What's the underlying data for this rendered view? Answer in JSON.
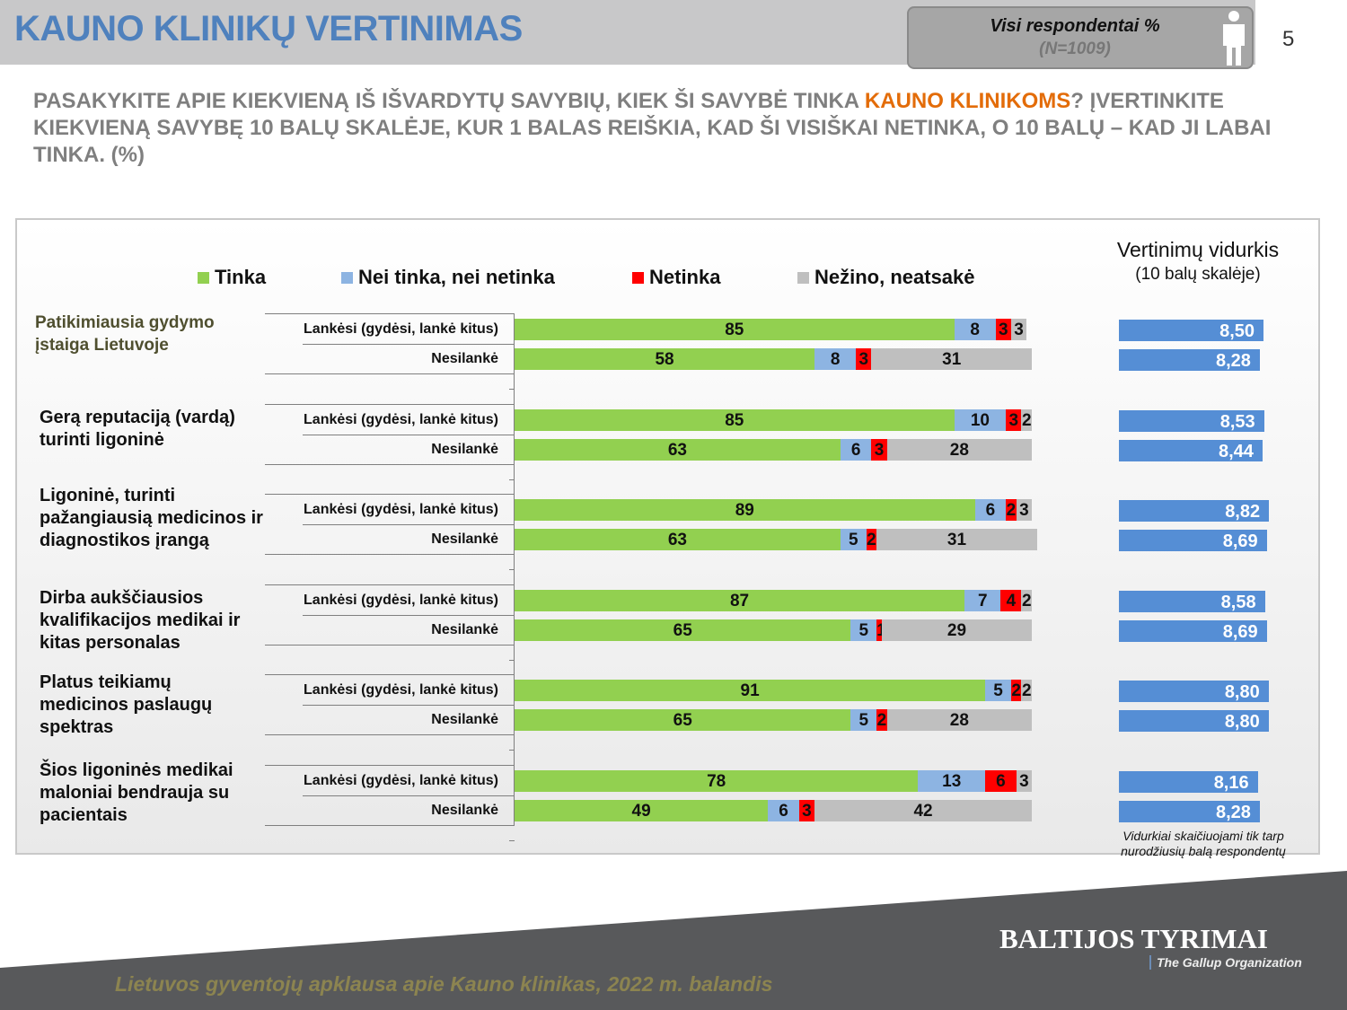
{
  "header": {
    "title": "KAUNO KLINIKŲ VERTINIMAS",
    "respondents": "Visi respondentai %",
    "n": "(N=1009)",
    "page": "5"
  },
  "question": {
    "before": "PASAKYKITE APIE KIEKVIENĄ IŠ IŠVARDYTŲ SAVYBIŲ, KIEK ŠI SAVYBĖ TINKA ",
    "highlight": "KAUNO KLINIKOMS",
    "after": "? ĮVERTINKITE KIEKVIENĄ SAVYBĘ 10 BALŲ SKALĖJE, KUR 1 BALAS REIŠKIA, KAD ŠI VISIŠKAI NETINKA, O 10 BALŲ – KAD JI LABAI TINKA. (%)"
  },
  "colors": {
    "tinka": "#92d050",
    "nei": "#8db4e2",
    "netinka": "#ff0000",
    "nezino": "#bfbfbf",
    "avg": "#558ed5"
  },
  "chart_data": {
    "type": "bar",
    "stacked": true,
    "orientation": "horizontal",
    "xlim": [
      0,
      100
    ],
    "legend": [
      "Tinka",
      "Nei tinka, nei netinka",
      "Netinka",
      "Nežino, neatsakė"
    ],
    "row_labels": [
      "Lankėsi (gydėsi, lankė kitus)",
      "Nesilankė"
    ],
    "groups": [
      {
        "label": "Patikimiausia gydymo įstaiga Lietuvoje",
        "rows": [
          [
            85,
            8,
            3,
            3
          ],
          [
            58,
            8,
            3,
            31
          ]
        ],
        "avg": [
          "8,50",
          "8,28"
        ]
      },
      {
        "label": "Gerą reputaciją (vardą) turinti ligoninė",
        "rows": [
          [
            85,
            10,
            3,
            2
          ],
          [
            63,
            6,
            3,
            28
          ]
        ],
        "avg": [
          "8,53",
          "8,44"
        ]
      },
      {
        "label": "Ligoninė, turinti pažangiausią medicinos ir diagnostikos įrangą",
        "rows": [
          [
            89,
            6,
            2,
            3
          ],
          [
            63,
            5,
            2,
            31
          ]
        ],
        "avg": [
          "8,82",
          "8,69"
        ]
      },
      {
        "label": "Dirba aukščiausios kvalifikacijos medikai ir kitas personalas",
        "rows": [
          [
            87,
            7,
            4,
            2
          ],
          [
            65,
            5,
            1,
            29
          ]
        ],
        "avg": [
          "8,58",
          "8,69"
        ]
      },
      {
        "label": "Platus teikiamų medicinos paslaugų spektras",
        "rows": [
          [
            91,
            5,
            2,
            2
          ],
          [
            65,
            5,
            2,
            28
          ]
        ],
        "avg": [
          "8,80",
          "8,80"
        ]
      },
      {
        "label": "Šios ligoninės medikai maloniai bendrauja su pacientais",
        "rows": [
          [
            78,
            13,
            6,
            3
          ],
          [
            49,
            6,
            3,
            42
          ]
        ],
        "avg": [
          "8,16",
          "8,28"
        ]
      }
    ],
    "avg_title": "Vertinimų vidurkis",
    "avg_subtitle": "(10 balų skalėje)",
    "avg_note": "Vidurkiai skaičiuojami tik tarp nurodžiusių balą respondentų"
  },
  "footer": {
    "survey": "Lietuvos gyventojų apklausa apie Kauno klinikas, 2022 m. balandis",
    "logo": "BALTIJOS TYRIMAI",
    "logo_sub": "The Gallup Organization"
  }
}
